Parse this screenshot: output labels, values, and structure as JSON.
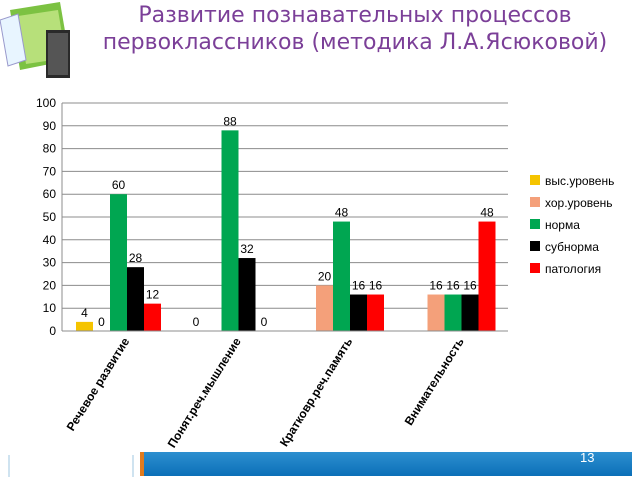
{
  "slide": {
    "title": "Развитие познавательных процессов первоклассников (методика Л.А.Ясюковой)",
    "number": "13"
  },
  "chart_data": {
    "type": "bar",
    "categories": [
      "Речевое развитие",
      "Понят.реч.мышление",
      "Кратковр.реч.память",
      "Внимательность"
    ],
    "series": [
      {
        "name": "выс.уровень",
        "color": "#f5c400",
        "values": [
          4,
          0,
          null,
          null
        ],
        "labels": [
          "4",
          "0",
          "",
          ""
        ]
      },
      {
        "name": "хор.уровень",
        "color": "#f4a07a",
        "values": [
          0,
          null,
          20,
          16
        ],
        "labels": [
          "0",
          "",
          "20",
          "16"
        ]
      },
      {
        "name": "норма",
        "color": "#00a651",
        "values": [
          60,
          88,
          48,
          16
        ],
        "labels": [
          "60",
          "88",
          "48",
          "16"
        ]
      },
      {
        "name": "субнорма",
        "color": "#000000",
        "values": [
          28,
          32,
          16,
          16
        ],
        "labels": [
          "28",
          "32",
          "16",
          "16"
        ]
      },
      {
        "name": "патология",
        "color": "#ff0000",
        "values": [
          12,
          0,
          16,
          48
        ],
        "labels": [
          "12",
          "0",
          "16",
          "48"
        ]
      }
    ],
    "ylim": [
      0,
      100
    ],
    "yticks": [
      0,
      10,
      20,
      30,
      40,
      50,
      60,
      70,
      80,
      90,
      100
    ],
    "grid": true,
    "legend": "right"
  }
}
